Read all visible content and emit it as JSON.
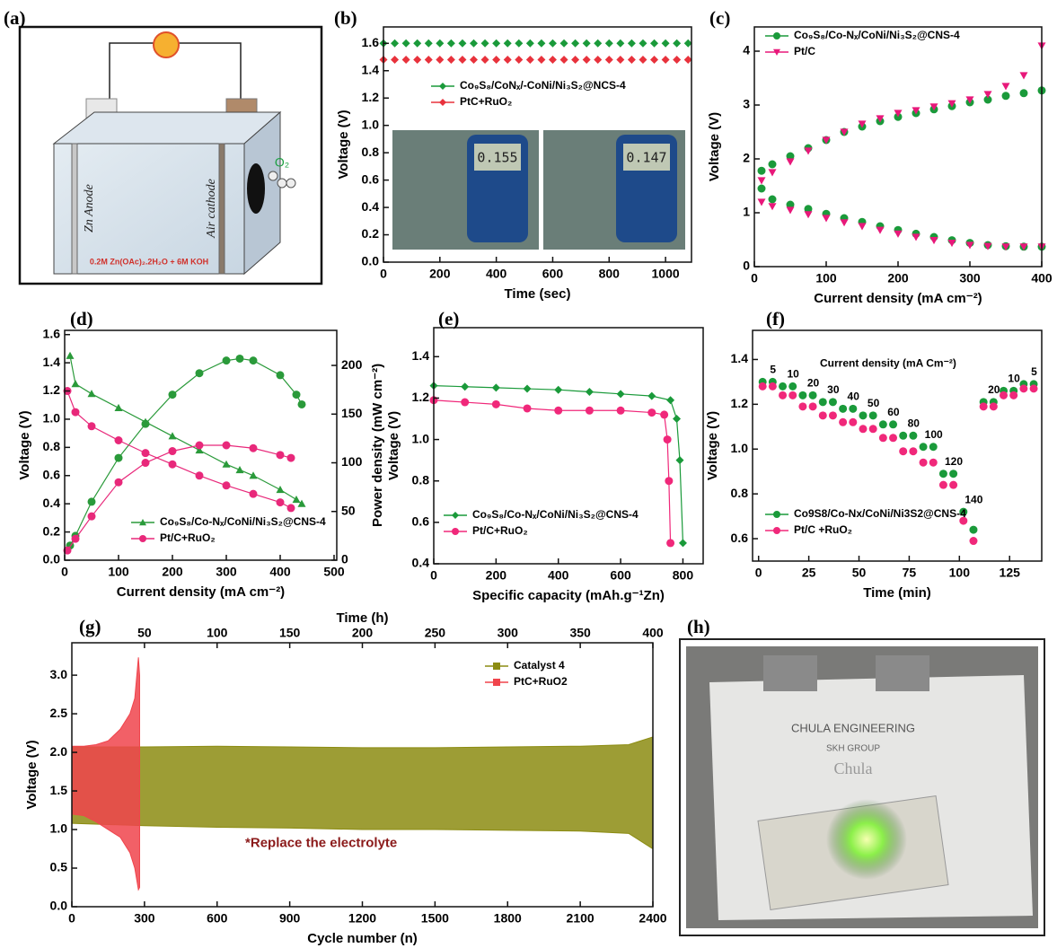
{
  "chart_data": [
    {
      "panel_label": "(b)",
      "type": "scatter",
      "xlabel": "Time (sec)",
      "ylabel": "Voltage (V)",
      "xlim": [
        0,
        1092
      ],
      "xticks": [
        0,
        200,
        400,
        600,
        800,
        1000
      ],
      "ylim": [
        0,
        1.72
      ],
      "yticks": [
        {
          "value": 0,
          "label": "0.0"
        },
        0.2,
        0.4,
        0.6,
        0.8,
        {
          "value": 1,
          "label": "1.0"
        },
        1.2,
        1.4,
        1.6
      ],
      "legend": "upper right",
      "insets": [
        "0.155",
        "0.147"
      ],
      "series": [
        {
          "name": "Co₉S₈/CoNₓ/-CoNi/Ni₃S₂@NCS-4",
          "color": "#1a9a3a",
          "marker": "diamond",
          "x": [
            0,
            40,
            80,
            120,
            160,
            200,
            240,
            280,
            320,
            360,
            400,
            440,
            480,
            520,
            560,
            600,
            640,
            680,
            720,
            760,
            800,
            840,
            880,
            920,
            960,
            1000,
            1040,
            1080
          ],
          "values": [
            1.6,
            1.6,
            1.6,
            1.6,
            1.6,
            1.6,
            1.6,
            1.6,
            1.6,
            1.6,
            1.6,
            1.6,
            1.6,
            1.6,
            1.6,
            1.6,
            1.6,
            1.6,
            1.6,
            1.6,
            1.6,
            1.6,
            1.6,
            1.6,
            1.6,
            1.6,
            1.6,
            1.6
          ]
        },
        {
          "name": "PtC+RuO₂",
          "color": "#e8323c",
          "marker": "diamond",
          "x": [
            0,
            40,
            80,
            120,
            160,
            200,
            240,
            280,
            320,
            360,
            400,
            440,
            480,
            520,
            560,
            600,
            640,
            680,
            720,
            760,
            800,
            840,
            880,
            920,
            960,
            1000,
            1040,
            1080
          ],
          "values": [
            1.48,
            1.48,
            1.48,
            1.48,
            1.48,
            1.48,
            1.48,
            1.48,
            1.48,
            1.48,
            1.48,
            1.48,
            1.48,
            1.48,
            1.48,
            1.48,
            1.48,
            1.48,
            1.48,
            1.48,
            1.48,
            1.48,
            1.48,
            1.48,
            1.48,
            1.48,
            1.48,
            1.48
          ]
        }
      ]
    },
    {
      "panel_label": "(c)",
      "type": "scatter",
      "xlabel": "Current density (mA cm⁻²)",
      "ylabel": "Voltage (V)",
      "xlim": [
        0,
        400
      ],
      "xticks": [
        0,
        100,
        200,
        300,
        400
      ],
      "ylim": [
        0,
        4.45
      ],
      "yticks": [
        0,
        1,
        2,
        3,
        4
      ],
      "legend": "upper left",
      "series": [
        {
          "name": "Co₉S₈/Co-Nₓ/CoNi/Ni₃S₂@CNS-4",
          "color": "#1a9a3a",
          "marker": "circle",
          "x": [
            10,
            25,
            50,
            75,
            100,
            125,
            150,
            175,
            200,
            225,
            250,
            275,
            300,
            325,
            350,
            375,
            400
          ],
          "charge": [
            1.78,
            1.9,
            2.05,
            2.2,
            2.35,
            2.5,
            2.6,
            2.7,
            2.78,
            2.85,
            2.92,
            2.98,
            3.05,
            3.1,
            3.17,
            3.22,
            3.27
          ],
          "discharge": [
            1.45,
            1.25,
            1.15,
            1.07,
            0.98,
            0.9,
            0.83,
            0.75,
            0.68,
            0.61,
            0.55,
            0.49,
            0.44,
            0.4,
            0.38,
            0.37,
            0.37
          ]
        },
        {
          "name": "Pt/C",
          "color": "#e8187a",
          "marker": "triangle-down",
          "x": [
            10,
            25,
            50,
            75,
            100,
            125,
            150,
            175,
            200,
            225,
            250,
            275,
            300,
            325,
            350,
            375,
            400
          ],
          "charge": [
            1.6,
            1.75,
            1.95,
            2.15,
            2.35,
            2.5,
            2.65,
            2.75,
            2.85,
            2.9,
            2.97,
            3.03,
            3.1,
            3.2,
            3.35,
            3.55,
            4.1
          ],
          "discharge": [
            1.2,
            1.12,
            1.05,
            0.97,
            0.9,
            0.82,
            0.75,
            0.68,
            0.61,
            0.55,
            0.49,
            0.44,
            0.4,
            0.38,
            0.37,
            0.37,
            0.37
          ]
        }
      ]
    },
    {
      "panel_label": "(d)",
      "type": "line",
      "xlabel": "Current density (mA cm⁻²)",
      "ylabel": "Voltage (V)",
      "y2label": "Power density (mW cm⁻²)",
      "xlim": [
        0,
        505
      ],
      "xticks": [
        0,
        100,
        200,
        300,
        400,
        500
      ],
      "ylim": [
        0,
        1.63
      ],
      "yticks": [
        {
          "value": 0,
          "label": "0.0"
        },
        0.2,
        0.4,
        0.6,
        0.8,
        {
          "value": 1,
          "label": "1.0"
        },
        1.2,
        1.4,
        1.6
      ],
      "y2lim": [
        0,
        236
      ],
      "y2ticks": [
        0,
        50,
        100,
        150,
        200
      ],
      "legend": "lower left",
      "series": [
        {
          "name": "Co₉S₈/Co-Nₓ/CoNi/Ni₃S₂@CNS-4",
          "color": "#2a9a3a",
          "marker": "triangle",
          "x": [
            10,
            20,
            50,
            100,
            150,
            200,
            250,
            300,
            325,
            350,
            400,
            430,
            440
          ],
          "values": [
            1.45,
            1.25,
            1.18,
            1.08,
            0.98,
            0.88,
            0.78,
            0.68,
            0.64,
            0.6,
            0.5,
            0.43,
            0.4
          ],
          "power": [
            15,
            25,
            60,
            105,
            140,
            170,
            192,
            205,
            207,
            205,
            190,
            170,
            160
          ]
        },
        {
          "name": "Pt/C+RuO₂",
          "color": "#e8287a",
          "marker": "circle",
          "x": [
            5,
            20,
            50,
            100,
            150,
            200,
            250,
            300,
            350,
            400,
            420
          ],
          "values": [
            1.2,
            1.05,
            0.95,
            0.85,
            0.76,
            0.68,
            0.6,
            0.53,
            0.47,
            0.41,
            0.37
          ],
          "power": [
            10,
            22,
            45,
            80,
            100,
            112,
            118,
            118,
            115,
            108,
            105
          ]
        }
      ]
    },
    {
      "panel_label": "(e)",
      "type": "line",
      "xlabel": "Specific capacity (mAh.g⁻¹Zn)",
      "ylabel": "Voltage (V)",
      "xlim": [
        0,
        865
      ],
      "xticks": [
        0,
        200,
        400,
        600,
        800
      ],
      "ylim": [
        0.4,
        1.54
      ],
      "yticks": [
        0.4,
        0.6,
        0.8,
        {
          "value": 1,
          "label": "1.0"
        },
        1.2,
        1.4
      ],
      "legend": "lower left",
      "series": [
        {
          "name": "Co₉S₈/Co-Nₓ/CoNi/Ni₃S₂@CNS-4",
          "color": "#1a9a3a",
          "marker": "diamond",
          "x": [
            0,
            100,
            200,
            300,
            400,
            500,
            600,
            700,
            760,
            780,
            790,
            800
          ],
          "values": [
            1.26,
            1.255,
            1.25,
            1.245,
            1.24,
            1.23,
            1.22,
            1.21,
            1.19,
            1.1,
            0.9,
            0.5
          ]
        },
        {
          "name": "Pt/C+RuO₂",
          "color": "#f0287a",
          "marker": "circle",
          "x": [
            0,
            100,
            200,
            300,
            400,
            500,
            600,
            700,
            740,
            750,
            755,
            760
          ],
          "values": [
            1.19,
            1.18,
            1.17,
            1.15,
            1.14,
            1.14,
            1.14,
            1.13,
            1.12,
            1.0,
            0.8,
            0.5
          ]
        }
      ]
    },
    {
      "panel_label": "(f)",
      "type": "scatter",
      "xlabel": "Time (min)",
      "ylabel": "Voltage (V)",
      "xlim": [
        -3,
        141
      ],
      "xticks": [
        0,
        25,
        50,
        75,
        100,
        125
      ],
      "ylim": [
        0.5,
        1.53
      ],
      "yticks": [
        0.6,
        0.8,
        {
          "value": 1,
          "label": "1.0"
        },
        1.2,
        1.4
      ],
      "legend": "lower left",
      "annotation": "Current density (mA Cm⁻²)",
      "current_densities": [
        5,
        10,
        20,
        30,
        40,
        50,
        60,
        80,
        100,
        120,
        140,
        20,
        10,
        5
      ],
      "series": [
        {
          "name": "Co9S8/Co-Nx/CoNi/Ni3S2@CNS-4",
          "color": "#1a9a3a",
          "marker": "circle",
          "x": [
            2,
            7,
            12,
            17,
            22,
            27,
            32,
            37,
            42,
            47,
            52,
            57,
            62,
            67,
            72,
            77,
            82,
            87,
            92,
            97,
            102,
            107,
            112,
            117,
            122,
            127,
            132,
            137
          ],
          "values": [
            1.3,
            1.3,
            1.28,
            1.28,
            1.24,
            1.24,
            1.21,
            1.21,
            1.18,
            1.18,
            1.15,
            1.15,
            1.11,
            1.11,
            1.06,
            1.06,
            1.01,
            1.01,
            0.89,
            0.89,
            0.72,
            0.64,
            1.21,
            1.21,
            1.26,
            1.26,
            1.29,
            1.29
          ]
        },
        {
          "name": "Pt/C +RuO₂",
          "color": "#f0287a",
          "marker": "circle",
          "x": [
            2,
            7,
            12,
            17,
            22,
            27,
            32,
            37,
            42,
            47,
            52,
            57,
            62,
            67,
            72,
            77,
            82,
            87,
            92,
            97,
            102,
            107,
            112,
            117,
            122,
            127,
            132,
            137
          ],
          "values": [
            1.28,
            1.28,
            1.24,
            1.24,
            1.19,
            1.19,
            1.15,
            1.15,
            1.12,
            1.12,
            1.09,
            1.09,
            1.05,
            1.05,
            0.99,
            0.99,
            0.94,
            0.94,
            0.84,
            0.84,
            0.68,
            0.59,
            1.19,
            1.19,
            1.24,
            1.24,
            1.27,
            1.27
          ]
        }
      ]
    },
    {
      "panel_label": "(g)",
      "type": "area",
      "xlabel": "Cycle number (n)",
      "ylabel": "Voltage (V)",
      "x2label": "Time (h)",
      "xlim": [
        0,
        2400
      ],
      "xticks": [
        0,
        300,
        600,
        900,
        1200,
        1500,
        1800,
        2100,
        2400
      ],
      "x2lim": [
        0,
        400
      ],
      "x2ticks": [
        50,
        100,
        150,
        200,
        250,
        300,
        350,
        400
      ],
      "ylim": [
        0,
        3.42
      ],
      "yticks": [
        {
          "value": 0,
          "label": "0.0"
        },
        0.5,
        {
          "value": 1,
          "label": "1.0"
        },
        1.5,
        {
          "value": 2,
          "label": "2.0"
        },
        2.5,
        {
          "value": 3,
          "label": "3.0"
        }
      ],
      "legend": "upper right",
      "annotation": "*Replace the electrolyte",
      "series": [
        {
          "name": "Catalyst 4",
          "color": "#8c8c12",
          "x": [
            0,
            300,
            600,
            900,
            1200,
            1500,
            1800,
            2100,
            2300,
            2400
          ],
          "upper": [
            2.07,
            2.07,
            2.08,
            2.07,
            2.06,
            2.06,
            2.07,
            2.08,
            2.1,
            2.2
          ],
          "lower": [
            1.08,
            1.05,
            1.03,
            1.02,
            1.0,
            1.0,
            0.99,
            0.98,
            0.95,
            0.75
          ]
        },
        {
          "name": "PtC+RuO2",
          "color": "#f0444c",
          "x": [
            0,
            50,
            100,
            150,
            200,
            240,
            260,
            275,
            280
          ],
          "upper": [
            2.08,
            2.08,
            2.1,
            2.15,
            2.3,
            2.5,
            2.7,
            3.23,
            3.0
          ],
          "lower": [
            1.2,
            1.18,
            1.1,
            1.0,
            0.9,
            0.7,
            0.5,
            0.22,
            0.25
          ]
        }
      ]
    }
  ],
  "diagram_a": {
    "panel_label": "(a)",
    "anode": "Zn Anode",
    "cathode": "Air cathode",
    "gas": "O₂",
    "electrolyte": "0.2M Zn(OAc)₂.2H₂O + 6M KOH"
  },
  "photo_h": {
    "panel_label": "(h)",
    "texts": [
      "CHULA ENGINEERING",
      "SKH GROUP",
      "Chula"
    ]
  }
}
